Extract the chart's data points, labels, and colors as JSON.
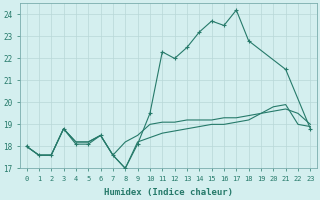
{
  "xlabel": "Humidex (Indice chaleur)",
  "x": [
    0,
    1,
    2,
    3,
    4,
    5,
    6,
    7,
    8,
    9,
    10,
    11,
    12,
    13,
    14,
    15,
    16,
    17,
    18,
    19,
    20,
    21,
    22,
    23
  ],
  "line1_y": [
    18.0,
    17.6,
    17.6,
    18.8,
    18.1,
    18.1,
    18.5,
    17.6,
    17.0,
    18.1,
    19.5,
    22.3,
    22.0,
    22.5,
    23.2,
    23.7,
    23.5,
    24.2,
    22.8,
    null,
    null,
    21.5,
    null,
    18.8
  ],
  "line1_x": [
    0,
    1,
    2,
    3,
    4,
    5,
    6,
    7,
    8,
    9,
    10,
    11,
    12,
    13,
    14,
    15,
    16,
    17,
    18,
    21,
    23
  ],
  "line1_v": [
    18.0,
    17.6,
    17.6,
    18.8,
    18.1,
    18.1,
    18.5,
    17.6,
    17.0,
    18.1,
    19.5,
    22.3,
    22.0,
    22.5,
    23.2,
    23.7,
    23.5,
    24.2,
    22.8,
    21.5,
    18.8
  ],
  "line2_x": [
    0,
    1,
    2,
    3,
    4,
    5,
    6,
    7,
    8,
    9,
    10,
    11,
    12,
    13,
    14,
    15,
    16,
    17,
    18,
    19,
    20,
    21,
    22,
    23
  ],
  "line2_y": [
    18.0,
    17.6,
    17.6,
    18.8,
    18.2,
    18.2,
    18.5,
    17.6,
    18.2,
    18.5,
    19.0,
    19.1,
    19.1,
    19.2,
    19.2,
    19.2,
    19.3,
    19.3,
    19.4,
    19.5,
    19.6,
    19.7,
    19.5,
    19.0
  ],
  "line3_x": [
    0,
    1,
    2,
    3,
    4,
    5,
    6,
    7,
    8,
    9,
    10,
    11,
    12,
    13,
    14,
    15,
    16,
    17,
    18,
    19,
    20,
    21,
    22,
    23
  ],
  "line3_y": [
    18.0,
    17.6,
    17.6,
    18.8,
    18.2,
    18.2,
    18.5,
    17.6,
    17.0,
    18.2,
    18.4,
    18.6,
    18.7,
    18.8,
    18.9,
    19.0,
    19.0,
    19.1,
    19.2,
    19.5,
    19.8,
    19.9,
    19.0,
    18.9
  ],
  "line_color": "#267a6a",
  "bg_color": "#d4efef",
  "grid_color": "#b8d8d8",
  "ylim": [
    17,
    24.5
  ],
  "yticks": [
    17,
    18,
    19,
    20,
    21,
    22,
    23,
    24
  ],
  "xticks": [
    0,
    1,
    2,
    3,
    4,
    5,
    6,
    7,
    8,
    9,
    10,
    11,
    12,
    13,
    14,
    15,
    16,
    17,
    18,
    19,
    20,
    21,
    22,
    23
  ]
}
